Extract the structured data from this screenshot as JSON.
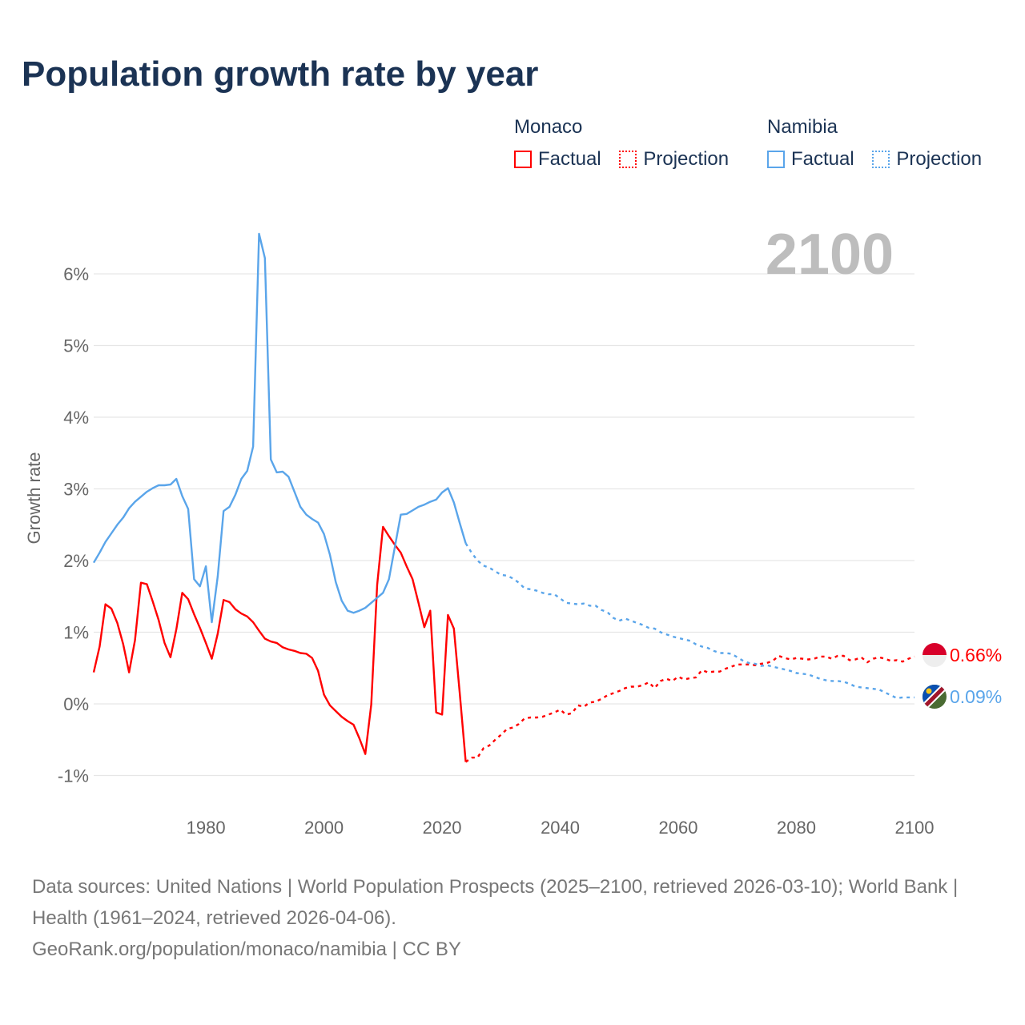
{
  "title": "Population growth rate by year",
  "legend": {
    "groups": [
      {
        "name": "Monaco",
        "color": "#ff0000",
        "items": [
          "Factual",
          "Projection"
        ]
      },
      {
        "name": "Namibia",
        "color": "#5aa5ea",
        "items": [
          "Factual",
          "Projection"
        ]
      }
    ]
  },
  "year_label": "2100",
  "end_labels": {
    "monaco": "0.66%",
    "namibia": "0.09%"
  },
  "footer": {
    "sources": "Data sources: United Nations | World Population Prospects (2025–2100, retrieved 2026-03-10); World Bank | Health (1961–2024, retrieved 2026-04-06).",
    "credit": "GeoRank.org/population/monaco/namibia | CC BY"
  },
  "chart_data": {
    "type": "line",
    "title": "Population growth rate by year",
    "xlabel": "",
    "ylabel": "Growth rate",
    "xlim": [
      1961,
      2100
    ],
    "ylim": [
      -1.2,
      6.6
    ],
    "x_ticks": [
      1980,
      2000,
      2020,
      2040,
      2060,
      2080,
      2100
    ],
    "y_ticks": [
      -1,
      0,
      1,
      2,
      3,
      4,
      5,
      6
    ],
    "y_tick_labels": [
      "-1%",
      "0%",
      "1%",
      "2%",
      "3%",
      "4%",
      "5%",
      "6%"
    ],
    "grid": true,
    "series": [
      {
        "name": "Monaco Factual",
        "color": "#ff0000",
        "dashed": false,
        "start_year": 1961,
        "values": [
          0.44,
          0.8,
          1.39,
          1.33,
          1.13,
          0.83,
          0.44,
          0.89,
          1.69,
          1.67,
          1.43,
          1.17,
          0.85,
          0.65,
          1.04,
          1.55,
          1.46,
          1.25,
          1.06,
          0.85,
          0.63,
          0.98,
          1.45,
          1.42,
          1.32,
          1.26,
          1.22,
          1.14,
          1.02,
          0.91,
          0.87,
          0.85,
          0.79,
          0.76,
          0.74,
          0.71,
          0.7,
          0.64,
          0.46,
          0.13,
          -0.02,
          -0.1,
          -0.18,
          -0.24,
          -0.29,
          -0.48,
          -0.7,
          -0.01,
          1.66,
          2.47,
          2.34,
          2.22,
          2.11,
          1.92,
          1.74,
          1.41,
          1.07,
          1.3,
          -0.12,
          -0.15,
          1.24,
          1.05,
          0.14,
          -0.81
        ]
      },
      {
        "name": "Monaco Projection",
        "color": "#ff0000",
        "dashed": true,
        "start_year": 2024,
        "values": [
          -0.81,
          -0.75,
          -0.75,
          -0.62,
          -0.58,
          -0.5,
          -0.43,
          -0.35,
          -0.33,
          -0.28,
          -0.2,
          -0.19,
          -0.19,
          -0.18,
          -0.15,
          -0.12,
          -0.08,
          -0.15,
          -0.13,
          -0.02,
          -0.04,
          0.02,
          0.03,
          0.07,
          0.12,
          0.15,
          0.18,
          0.22,
          0.24,
          0.24,
          0.26,
          0.3,
          0.22,
          0.32,
          0.35,
          0.32,
          0.38,
          0.34,
          0.36,
          0.37,
          0.47,
          0.44,
          0.45,
          0.45,
          0.49,
          0.52,
          0.55,
          0.55,
          0.55,
          0.54,
          0.56,
          0.57,
          0.6,
          0.67,
          0.64,
          0.62,
          0.64,
          0.63,
          0.62,
          0.63,
          0.66,
          0.66,
          0.63,
          0.67,
          0.67,
          0.61,
          0.62,
          0.65,
          0.58,
          0.63,
          0.65,
          0.63,
          0.6,
          0.61,
          0.59,
          0.63,
          0.66
        ]
      },
      {
        "name": "Namibia Factual",
        "color": "#5aa5ea",
        "dashed": false,
        "start_year": 1961,
        "values": [
          1.97,
          2.11,
          2.26,
          2.38,
          2.5,
          2.6,
          2.73,
          2.82,
          2.89,
          2.96,
          3.01,
          3.05,
          3.05,
          3.06,
          3.14,
          2.9,
          2.72,
          1.74,
          1.64,
          1.92,
          1.14,
          1.78,
          2.69,
          2.75,
          2.92,
          3.14,
          3.25,
          3.59,
          6.56,
          6.22,
          3.41,
          3.23,
          3.24,
          3.17,
          2.96,
          2.75,
          2.64,
          2.58,
          2.53,
          2.37,
          2.08,
          1.7,
          1.44,
          1.3,
          1.27,
          1.3,
          1.34,
          1.41,
          1.48,
          1.55,
          1.74,
          2.19,
          2.64,
          2.65,
          2.7,
          2.75,
          2.78,
          2.82,
          2.85,
          2.95,
          3.01,
          2.81,
          2.52,
          2.24
        ]
      },
      {
        "name": "Namibia Projection",
        "color": "#5aa5ea",
        "dashed": true,
        "start_year": 2024,
        "values": [
          2.24,
          2.11,
          2.0,
          1.93,
          1.9,
          1.85,
          1.8,
          1.79,
          1.75,
          1.69,
          1.61,
          1.6,
          1.58,
          1.55,
          1.53,
          1.53,
          1.47,
          1.41,
          1.4,
          1.39,
          1.4,
          1.37,
          1.37,
          1.31,
          1.28,
          1.2,
          1.16,
          1.19,
          1.16,
          1.13,
          1.1,
          1.06,
          1.05,
          1.0,
          0.97,
          0.94,
          0.92,
          0.9,
          0.88,
          0.83,
          0.8,
          0.78,
          0.74,
          0.71,
          0.71,
          0.7,
          0.65,
          0.6,
          0.57,
          0.56,
          0.53,
          0.54,
          0.52,
          0.5,
          0.48,
          0.46,
          0.43,
          0.42,
          0.41,
          0.38,
          0.35,
          0.33,
          0.32,
          0.32,
          0.31,
          0.28,
          0.24,
          0.23,
          0.22,
          0.21,
          0.2,
          0.16,
          0.12,
          0.08,
          0.09,
          0.09,
          0.09
        ]
      }
    ]
  }
}
